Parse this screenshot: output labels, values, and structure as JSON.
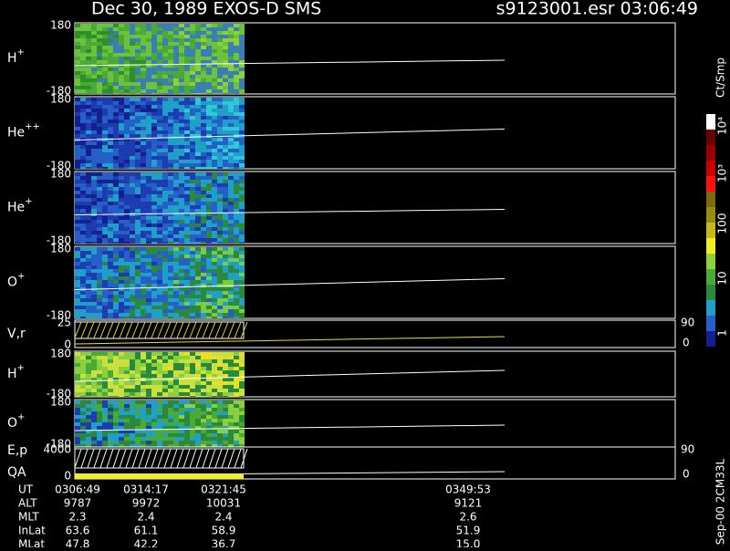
{
  "header": {
    "title": "Dec 30, 1989   EXOS-D SMS",
    "file": "s9123001.esr  03:06:49"
  },
  "panels": [
    {
      "name": "H",
      "charge": "+",
      "top": "180",
      "bottom": "-180"
    },
    {
      "name": "He",
      "charge": "++",
      "top": "180",
      "bottom": "-180"
    },
    {
      "name": "He",
      "charge": "+",
      "top": "180",
      "bottom": "-180"
    },
    {
      "name": "O",
      "charge": "+",
      "top": "180",
      "bottom": "-180"
    },
    {
      "name": "V,r",
      "top": "25",
      "bottom": "0",
      "right_top": "90",
      "right_bottom": "0"
    },
    {
      "name": "H",
      "charge": "+",
      "top": "180",
      "bottom": "-180"
    },
    {
      "name": "O",
      "charge": "+",
      "top": "180",
      "bottom": "-180"
    },
    {
      "name": "E,p",
      "name2": "QA",
      "top": "4000",
      "bottom": "0",
      "right_top": "90",
      "right_bottom": "0"
    }
  ],
  "colorbar": {
    "unit": "Ct/Smp",
    "labels": [
      "10⁴",
      "10³",
      "100",
      "10",
      "1"
    ]
  },
  "footer": {
    "rows": [
      {
        "label": "UT",
        "values": [
          "0306:49",
          "0314:17",
          "0321:45",
          "0349:53"
        ]
      },
      {
        "label": "ALT",
        "values": [
          "9787",
          "9972",
          "10031",
          "9121"
        ]
      },
      {
        "label": "MLT",
        "values": [
          "2.3",
          "2.4",
          "2.4",
          "2.6"
        ]
      },
      {
        "label": "InLat",
        "values": [
          "63.6",
          "61.1",
          "58.9",
          "51.9"
        ]
      },
      {
        "label": "MLat",
        "values": [
          "47.8",
          "42.2",
          "36.7",
          "15.0"
        ]
      }
    ],
    "stamp": "Sep-00 2CM33L"
  }
}
